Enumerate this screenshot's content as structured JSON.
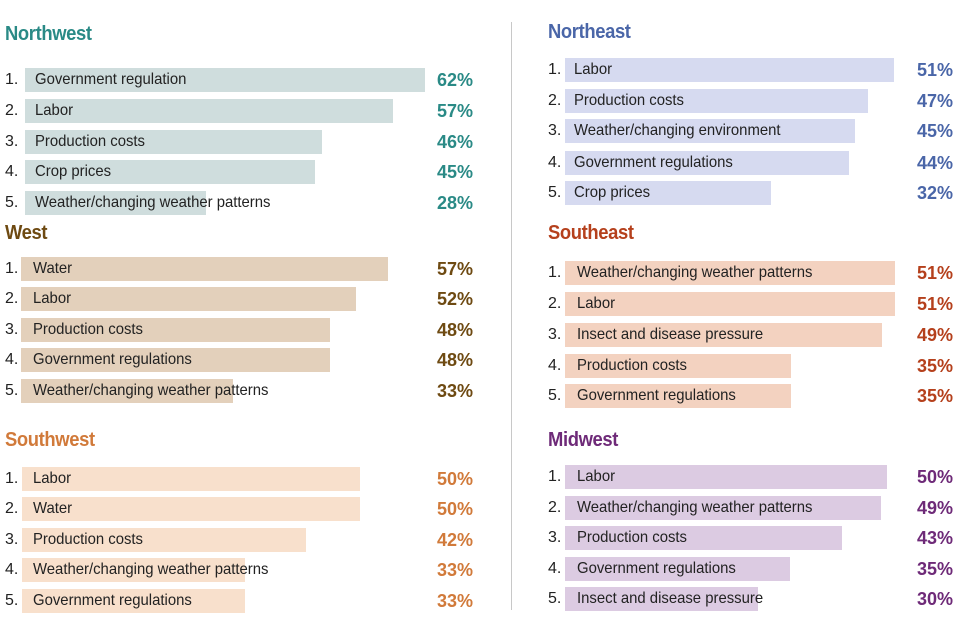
{
  "chart_data": [
    {
      "type": "bar",
      "title": "Northwest",
      "colors": {
        "title": "#2a8a86",
        "bar": "#cfdddd",
        "value": "#2a8a86"
      },
      "ranks": [
        "1.",
        "2.",
        "3.",
        "4.",
        "5."
      ],
      "categories": [
        "Government regulation",
        "Labor",
        "Production costs",
        "Crop prices",
        "Weather/changing weather patterns"
      ],
      "values": [
        62,
        57,
        46,
        45,
        28
      ],
      "value_labels": [
        "62%",
        "57%",
        "46%",
        "45%",
        "28%"
      ]
    },
    {
      "type": "bar",
      "title": "West",
      "colors": {
        "title": "#6e4a12",
        "bar": "#e3d0bb",
        "value": "#6e4a12"
      },
      "ranks": [
        "1.",
        "2.",
        "3.",
        "4.",
        "5."
      ],
      "categories": [
        "Water",
        "Labor",
        "Production costs",
        "Government regulations",
        "Weather/changing weather patterns"
      ],
      "values": [
        57,
        52,
        48,
        48,
        33
      ],
      "value_labels": [
        "57%",
        "52%",
        "48%",
        "48%",
        "33%"
      ]
    },
    {
      "type": "bar",
      "title": "Southwest",
      "colors": {
        "title": "#d17a3a",
        "bar": "#f8e0cc",
        "value": "#d17a3a"
      },
      "ranks": [
        "1.",
        "2.",
        "3.",
        "4.",
        "5."
      ],
      "categories": [
        "Labor",
        "Water",
        "Production costs",
        "Weather/changing weather patterns",
        "Government regulations"
      ],
      "values": [
        50,
        50,
        42,
        33,
        33
      ],
      "value_labels": [
        "50%",
        "50%",
        "42%",
        "33%",
        "33%"
      ]
    },
    {
      "type": "bar",
      "title": "Northeast",
      "colors": {
        "title": "#4a66a8",
        "bar": "#d6daf0",
        "value": "#4a66a8"
      },
      "ranks": [
        "1.",
        "2.",
        "3.",
        "4.",
        "5."
      ],
      "categories": [
        "Labor",
        "Production costs",
        "Weather/changing environment",
        "Government regulations",
        "Crop prices"
      ],
      "values": [
        51,
        47,
        45,
        44,
        32
      ],
      "value_labels": [
        "51%",
        "47%",
        "45%",
        "44%",
        "32%"
      ]
    },
    {
      "type": "bar",
      "title": "Southeast",
      "colors": {
        "title": "#b5401c",
        "bar": "#f3d2c0",
        "value": "#b5401c"
      },
      "ranks": [
        "1.",
        "2.",
        "3.",
        "4.",
        "5."
      ],
      "categories": [
        "Weather/changing weather patterns",
        "Labor",
        "Insect and disease pressure",
        "Production costs",
        "Government regulations"
      ],
      "values": [
        51,
        51,
        49,
        35,
        35
      ],
      "value_labels": [
        "51%",
        "51%",
        "49%",
        "35%",
        "35%"
      ]
    },
    {
      "type": "bar",
      "title": "Midwest",
      "colors": {
        "title": "#6e2a78",
        "bar": "#dccbe2",
        "value": "#6e2a78"
      },
      "ranks": [
        "1.",
        "2.",
        "3.",
        "4.",
        "5."
      ],
      "categories": [
        "Labor",
        "Weather/changing weather patterns",
        "Production costs",
        "Government regulations",
        "Insect and disease pressure"
      ],
      "values": [
        50,
        49,
        43,
        35,
        30
      ],
      "value_labels": [
        "50%",
        "49%",
        "43%",
        "35%",
        "30%"
      ]
    }
  ]
}
